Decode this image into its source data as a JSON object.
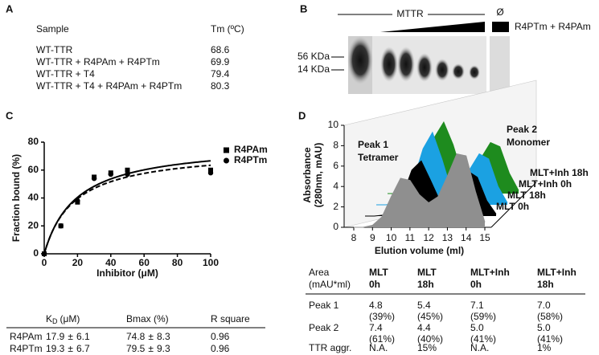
{
  "panel_labels": [
    "A",
    "B",
    "C",
    "D"
  ],
  "tm_table": {
    "header": [
      "Sample",
      "Tm (ºC)"
    ],
    "rows": [
      [
        "WT-TTR",
        "68.6"
      ],
      [
        "WT-TTR + R4PAm + R4PTm",
        "69.9"
      ],
      [
        "WT-TTR + T4",
        "79.4"
      ],
      [
        "WT-TTR + T4 + R4PAm + R4PTm",
        "80.3"
      ]
    ]
  },
  "gel": {
    "group_label": "MTTR",
    "empty_label": "Ø",
    "legend_label": "R4PTm + R4PAm",
    "size_markers": [
      "56 KDa",
      "14 KDa"
    ]
  },
  "chart_data": [
    {
      "type": "scatter",
      "x_label": "Inhibitor (μM)",
      "y_label": "Fraction bound (%)",
      "x": [
        0,
        10,
        20,
        30,
        40,
        50,
        100
      ],
      "series": [
        {
          "name": "R4PAm",
          "marker": "square",
          "line_style": "dashed",
          "color": "#000000",
          "values": [
            0,
            20,
            37,
            55,
            58,
            60,
            60
          ]
        },
        {
          "name": "R4PTm",
          "marker": "circle",
          "line_style": "solid",
          "color": "#000000",
          "values": [
            0,
            20,
            38,
            54,
            57,
            57,
            58
          ]
        }
      ],
      "xlim": [
        0,
        100
      ],
      "xticks": [
        0,
        20,
        40,
        60,
        80,
        100
      ],
      "ylim": [
        0,
        80
      ],
      "yticks": [
        0,
        20,
        40,
        60,
        80
      ],
      "grid": false
    },
    {
      "type": "area3d",
      "x_label": "Elution volume (ml)",
      "y_label": [
        "Absorbance",
        "(280nm, mAU)"
      ],
      "x": [
        8,
        8.5,
        9,
        9.5,
        10,
        10.5,
        11,
        11.5,
        12,
        12.5,
        13,
        13.5,
        14,
        14.5,
        15
      ],
      "series": [
        {
          "name": "MLT 0h",
          "color": "#8f8f8f",
          "values": [
            0,
            0,
            0.2,
            1.0,
            3.0,
            4.8,
            4.6,
            3.2,
            2.4,
            3.0,
            5.0,
            7.2,
            7.0,
            3.5,
            0.5
          ]
        },
        {
          "name": "MLT 18h",
          "color": "#000000",
          "values": [
            0,
            0,
            0.1,
            0.5,
            2.0,
            4.5,
            5.4,
            3.5,
            1.5,
            1.5,
            3.0,
            4.4,
            3.8,
            1.5,
            0.2
          ]
        },
        {
          "name": "MLT+Inh 0h",
          "color": "#1ba1e2",
          "values": [
            0,
            0,
            0.1,
            0.5,
            2.5,
            5.5,
            7.1,
            4.5,
            1.5,
            1.5,
            3.5,
            5.0,
            4.5,
            1.8,
            0.2
          ]
        },
        {
          "name": "MLT+Inh 18h",
          "color": "#1e8b1e",
          "values": [
            0,
            0,
            0.1,
            0.5,
            2.5,
            5.5,
            7.0,
            4.8,
            1.8,
            1.8,
            3.5,
            5.0,
            4.6,
            2.0,
            0.3
          ]
        }
      ],
      "annotations": [
        {
          "lines": [
            "Peak 1",
            "Tetramer"
          ]
        },
        {
          "lines": [
            "Peak 2",
            "Monomer"
          ]
        }
      ],
      "xlim": [
        8,
        15
      ],
      "xticks": [
        8,
        9,
        10,
        11,
        12,
        13,
        14,
        15
      ],
      "ylim": [
        0,
        10
      ],
      "yticks": [
        0,
        2,
        4,
        6,
        8,
        10
      ],
      "grid": false
    }
  ],
  "fit_table": {
    "header": {
      "kd_symbol": "K",
      "kd_subscript": "D",
      "kd_unit": "(μM)",
      "bmax": "Bmax (%)",
      "r2": "R square"
    },
    "pm_sign": "±",
    "rows": [
      {
        "name": "R4PAm",
        "kd": 17.9,
        "kd_err": 6.1,
        "bmax": 74.8,
        "bmax_err": 8.3,
        "r2": 0.96
      },
      {
        "name": "R4PTm",
        "kd": 19.3,
        "kd_err": 6.7,
        "bmax": 79.5,
        "bmax_err": 9.3,
        "r2": 0.96
      }
    ]
  },
  "area_table": {
    "header": [
      [
        "Area",
        "(mAU*ml)"
      ],
      [
        "MLT",
        "0h"
      ],
      [
        "MLT",
        "18h"
      ],
      [
        "MLT+Inh",
        "0h"
      ],
      [
        "MLT+Inh",
        "18h"
      ]
    ],
    "header_colors": [
      "#111111",
      "#8f8f8f",
      "#000000",
      "#1ba1e2",
      "#1e8b1e"
    ],
    "rows": [
      {
        "label": "Peak 1",
        "cells": [
          [
            "4.8",
            "(39%)"
          ],
          [
            "5.4",
            "(45%)"
          ],
          [
            "7.1",
            "(59%)"
          ],
          [
            "7.0",
            "(58%)"
          ]
        ]
      },
      {
        "label": "Peak 2",
        "cells": [
          [
            "7.4",
            "(61%)"
          ],
          [
            "4.4",
            "(40%)"
          ],
          [
            "5.0",
            "(41%)"
          ],
          [
            "5.0",
            "(41%)"
          ]
        ]
      },
      {
        "label": "TTR aggr.",
        "cells": [
          [
            "N.A."
          ],
          [
            "15%"
          ],
          [
            "N.A."
          ],
          [
            "1%"
          ]
        ]
      }
    ]
  }
}
